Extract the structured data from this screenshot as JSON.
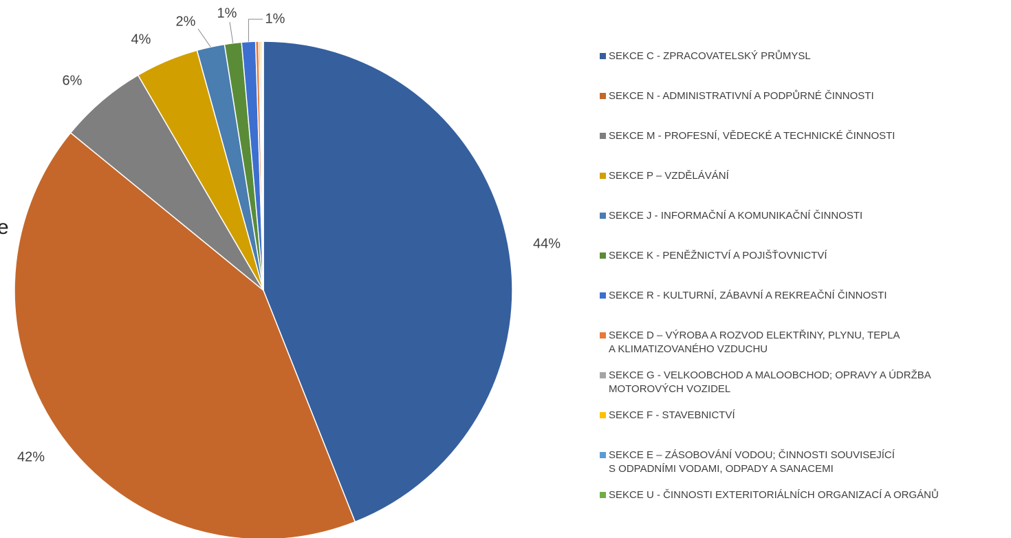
{
  "chart_data": {
    "type": "pie",
    "annotation": "e",
    "series": [
      {
        "names": [
          "SEKCE C - ZPRACOVATELSKÝ PRŮMYSL",
          "SEKCE N - ADMINISTRATIVNÍ A PODPŮRNÉ ČINNOSTI",
          "SEKCE M - PROFESNÍ, VĚDECKÉ A TECHNICKÉ ČINNOSTI",
          "SEKCE P – VZDĚLÁVÁNÍ",
          "SEKCE J - INFORMAČNÍ A KOMUNIKAČNÍ ČINNOSTI",
          "SEKCE K - PENĚŽNICTVÍ A POJIŠŤOVNICTVÍ",
          "SEKCE R - KULTURNÍ, ZÁBAVNÍ A REKREAČNÍ ČINNOSTI",
          "SEKCE D – VÝROBA A ROZVOD ELEKTŘINY, PLYNU, TEPLA\nA KLIMATIZOVANÉHO VZDUCHU",
          "SEKCE G - VELKOOBCHOD A MALOOBCHOD; OPRAVY A ÚDRŽBA\nMOTOROVÝCH VOZIDEL",
          "SEKCE F - STAVEBNICTVÍ",
          "SEKCE E – ZÁSOBOVÁNÍ VODOU; ČINNOSTI SOUVISEJÍCÍ\nS ODPADNÍMI VODAMI, ODPADY A SANACEMI",
          "SEKCE U - ČINNOSTI EXTERITORIÁLNÍCH ORGANIZACÍ A ORGÁNŮ"
        ],
        "values": [
          44.0,
          41.9,
          5.7,
          4.1,
          1.8,
          1.1,
          0.9,
          0.2,
          0.1,
          0.1,
          0.05,
          0.05
        ],
        "value_labels": [
          "44%",
          "42%",
          "6%",
          "4%",
          "2%",
          "1%",
          "1%",
          null,
          null,
          null,
          null,
          null
        ],
        "colors": [
          "#365f9e",
          "#c5672a",
          "#7f7f7f",
          "#d19f00",
          "#4a7db0",
          "#5a8c38",
          "#3d6fd0",
          "#e87b38",
          "#a5a5a5",
          "#ffc000",
          "#5b9bd5",
          "#70ad47"
        ]
      }
    ]
  }
}
